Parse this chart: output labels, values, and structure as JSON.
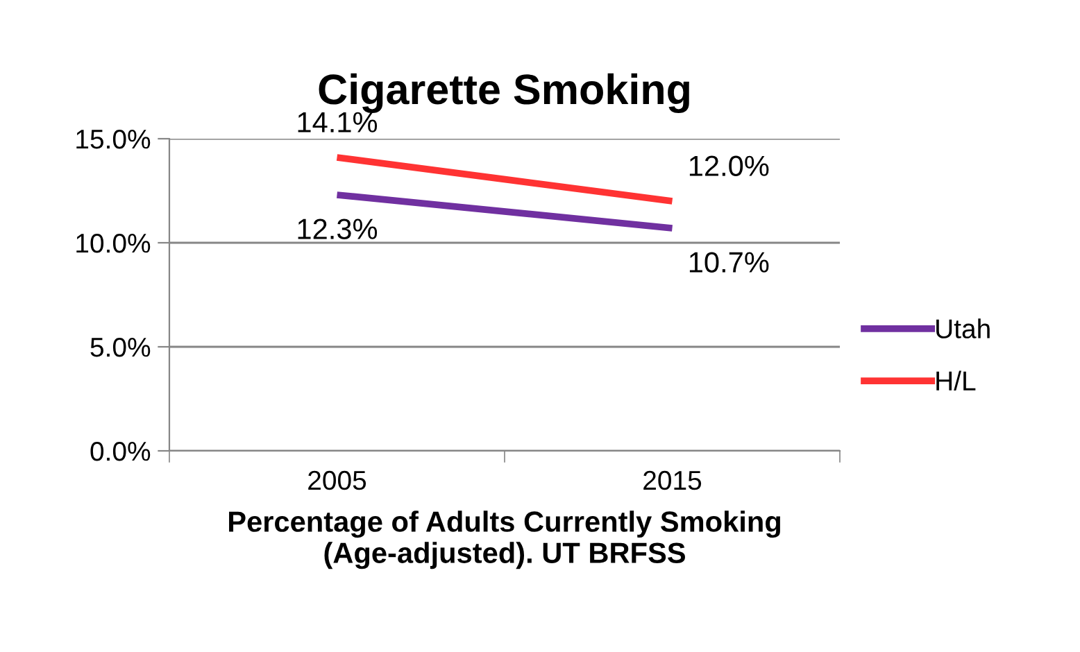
{
  "chart_data": {
    "type": "line",
    "title": "Cigarette Smoking",
    "xlabel": "Percentage of Adults Currently Smoking\n(Age-adjusted). UT BRFSS",
    "categories": [
      "2005",
      "2015"
    ],
    "series": [
      {
        "name": "Utah",
        "color": "#7030a0",
        "values": [
          12.3,
          10.7
        ],
        "value_labels": [
          "12.3%",
          "10.7%"
        ]
      },
      {
        "name": "H/L",
        "color": "#ff3333",
        "values": [
          14.1,
          12.0
        ],
        "value_labels": [
          "14.1%",
          "12.0%"
        ]
      }
    ],
    "ylim": [
      0,
      15
    ],
    "yticks": [
      {
        "value": 0,
        "label": "0.0%"
      },
      {
        "value": 5,
        "label": "5.0%"
      },
      {
        "value": 10,
        "label": "10.0%"
      },
      {
        "value": 15,
        "label": "15.0%"
      }
    ],
    "grid": "y",
    "legend": "right",
    "marker": "none",
    "line_style": "solid"
  }
}
